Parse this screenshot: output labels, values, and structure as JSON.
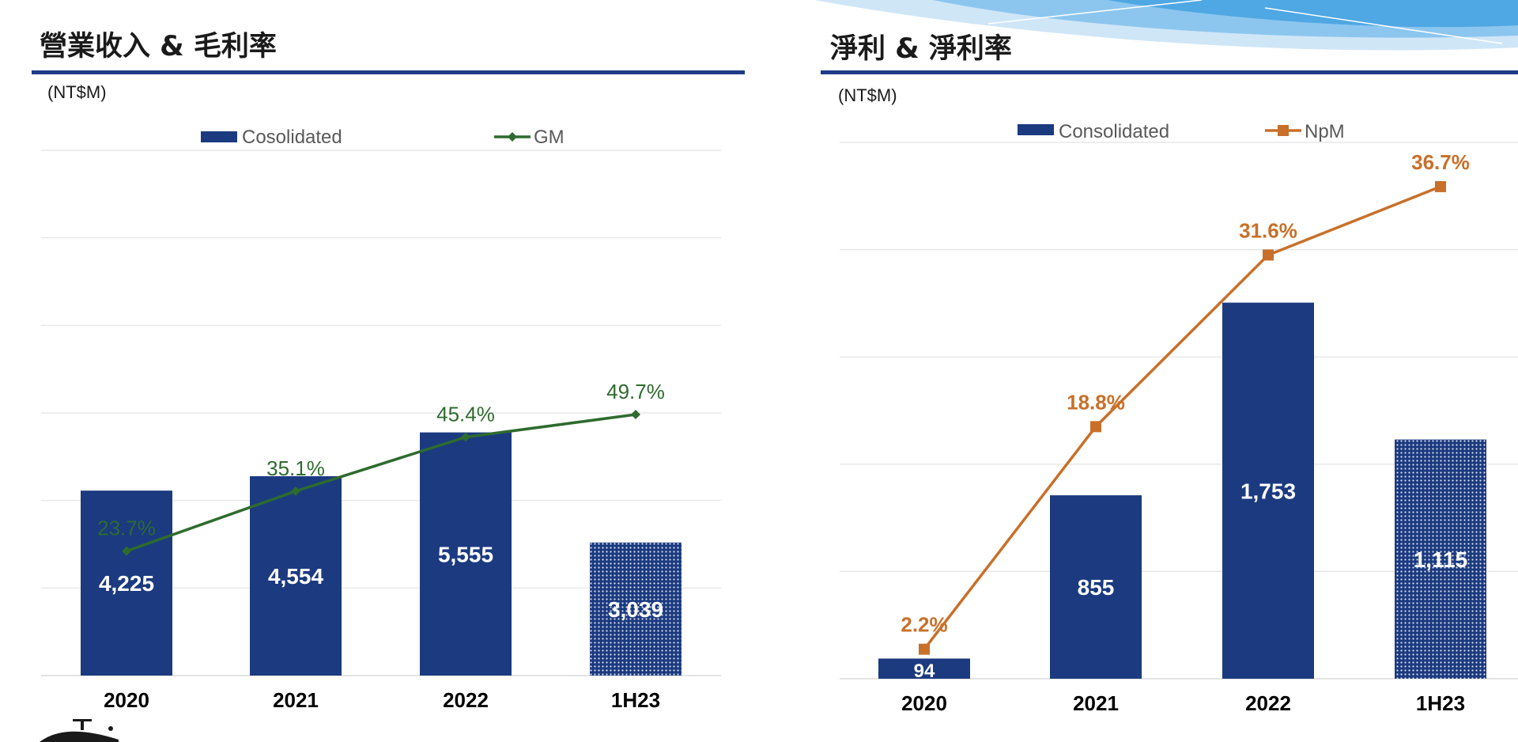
{
  "panels": {
    "revenue": {
      "title": "營業收入 & 毛利率",
      "unit": "(NT$M)"
    },
    "net_income": {
      "title": "淨利 & 淨利率",
      "unit": "(NT$M)"
    }
  },
  "colors": {
    "bar": "#1b3a80",
    "title_rule": "#1f3c88",
    "gm_line": "#2e6b2e",
    "npm_line": "#c8702a",
    "grid": "#e3e3e3"
  },
  "chart_data": [
    {
      "type": "bar",
      "title": "營業收入 & 毛利率",
      "categories": [
        "2020",
        "2021",
        "2022",
        "1H23"
      ],
      "ylim": [
        0,
        12000
      ],
      "y2lim": [
        0,
        100
      ],
      "grid": true,
      "legend_position": "top",
      "series": [
        {
          "name": "Cosolidated",
          "kind": "bar",
          "values": [
            4225,
            4554,
            5555,
            3039
          ],
          "labels": [
            "4,225",
            "4,554",
            "5,555",
            "3,039"
          ],
          "hatched": [
            false,
            false,
            false,
            true
          ]
        },
        {
          "name": "GM",
          "kind": "line",
          "marker": "diamond",
          "values": [
            23.7,
            35.1,
            45.4,
            49.7
          ],
          "labels": [
            "23.7%",
            "35.1%",
            "45.4%",
            "49.7%"
          ]
        }
      ]
    },
    {
      "type": "bar",
      "title": "淨利 & 淨利率",
      "categories": [
        "2020",
        "2021",
        "2022",
        "1H23"
      ],
      "ylim": [
        0,
        2500
      ],
      "y2lim": [
        0,
        40
      ],
      "grid": true,
      "legend_position": "top",
      "series": [
        {
          "name": "Consolidated",
          "kind": "bar",
          "values": [
            94,
            855,
            1753,
            1115
          ],
          "labels": [
            "94",
            "855",
            "1,753",
            "1,115"
          ],
          "hatched": [
            false,
            false,
            false,
            true
          ]
        },
        {
          "name": "NpM",
          "kind": "line",
          "marker": "square",
          "values": [
            2.2,
            18.8,
            31.6,
            36.7
          ],
          "labels": [
            "2.2%",
            "18.8%",
            "31.6%",
            "36.7%"
          ]
        }
      ]
    }
  ]
}
